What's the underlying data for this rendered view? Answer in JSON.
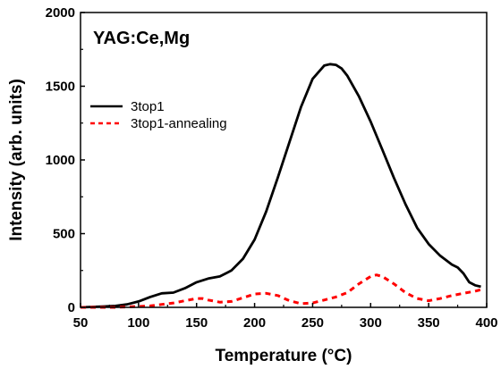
{
  "chart_data": {
    "type": "line",
    "title": "",
    "annotation": "YAG:Ce,Mg",
    "xlabel": "Temperature",
    "xlabel_unit": "(°C)",
    "ylabel": "Intensity (arb. units)",
    "xlim": [
      50,
      400
    ],
    "ylim": [
      0,
      2000
    ],
    "xticks": [
      "50",
      "100",
      "150",
      "200",
      "250",
      "300",
      "350",
      "400"
    ],
    "yticks": [
      "0",
      "500",
      "1000",
      "1500",
      "2000"
    ],
    "grid": false,
    "legend": "upper-left",
    "series": [
      {
        "name": "3top1",
        "style": "solid",
        "color": "#000000",
        "x": [
          50,
          60,
          70,
          80,
          90,
          100,
          110,
          120,
          130,
          140,
          150,
          160,
          170,
          180,
          190,
          200,
          210,
          220,
          230,
          240,
          250,
          260,
          265,
          270,
          275,
          280,
          290,
          300,
          310,
          320,
          330,
          340,
          350,
          360,
          370,
          375,
          380,
          385,
          390,
          395
        ],
        "y": [
          0,
          3,
          6,
          10,
          20,
          40,
          70,
          95,
          100,
          130,
          170,
          195,
          210,
          250,
          330,
          460,
          650,
          880,
          1120,
          1360,
          1550,
          1640,
          1650,
          1645,
          1620,
          1570,
          1430,
          1260,
          1070,
          880,
          700,
          540,
          430,
          350,
          290,
          270,
          230,
          170,
          150,
          140
        ]
      },
      {
        "name": "3top1-annealing",
        "style": "dashed",
        "color": "#ff0000",
        "x": [
          50,
          60,
          70,
          80,
          90,
          100,
          110,
          120,
          130,
          140,
          150,
          155,
          160,
          170,
          180,
          190,
          200,
          210,
          220,
          230,
          240,
          250,
          260,
          270,
          280,
          290,
          300,
          305,
          310,
          320,
          330,
          340,
          350,
          360,
          370,
          380,
          390,
          395
        ],
        "y": [
          0,
          0,
          0,
          0,
          3,
          6,
          10,
          20,
          30,
          45,
          60,
          60,
          50,
          35,
          40,
          65,
          90,
          95,
          80,
          45,
          25,
          30,
          50,
          70,
          100,
          160,
          210,
          220,
          210,
          160,
          100,
          60,
          45,
          60,
          80,
          95,
          110,
          120
        ]
      }
    ]
  }
}
